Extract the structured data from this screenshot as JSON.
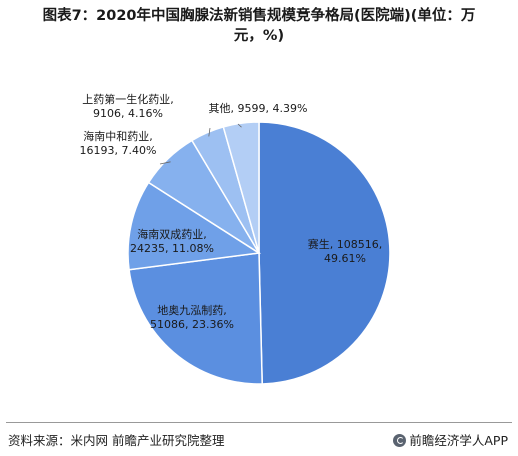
{
  "header": {
    "title_line1": "图表7：2020年中国胸腺法新销售规模竞争格局(医院端)(单位：万",
    "title_line2": "元，%)"
  },
  "chart_data": {
    "type": "pie",
    "title": "图表7：2020年中国胸腺法新销售规模竞争格局(医院端)(单位：万元，%)",
    "start_angle_deg": 0,
    "direction": "clockwise",
    "slices": [
      {
        "name": "赛生",
        "value": 108516,
        "percent": "49.61%",
        "color": "#4a7fd4"
      },
      {
        "name": "地奥九泓制药",
        "value": 51086,
        "percent": "23.36%",
        "color": "#5b8fe0"
      },
      {
        "name": "海南双成药业",
        "value": 24235,
        "percent": "11.08%",
        "color": "#6fa0e8"
      },
      {
        "name": "海南中和药业",
        "value": 16193,
        "percent": "7.40%",
        "color": "#86b1ee"
      },
      {
        "name": "上药第一生化药业",
        "value": 9106,
        "percent": "4.16%",
        "color": "#9dc0f2"
      },
      {
        "name": "其他",
        "value": 9599,
        "percent": "4.39%",
        "color": "#b3cef5"
      }
    ]
  },
  "footer": {
    "source": "资料来源：米内网 前瞻产业研究院整理",
    "brand": "前瞻经济学人APP",
    "brand_icon": "qianzhan-logo-icon"
  }
}
